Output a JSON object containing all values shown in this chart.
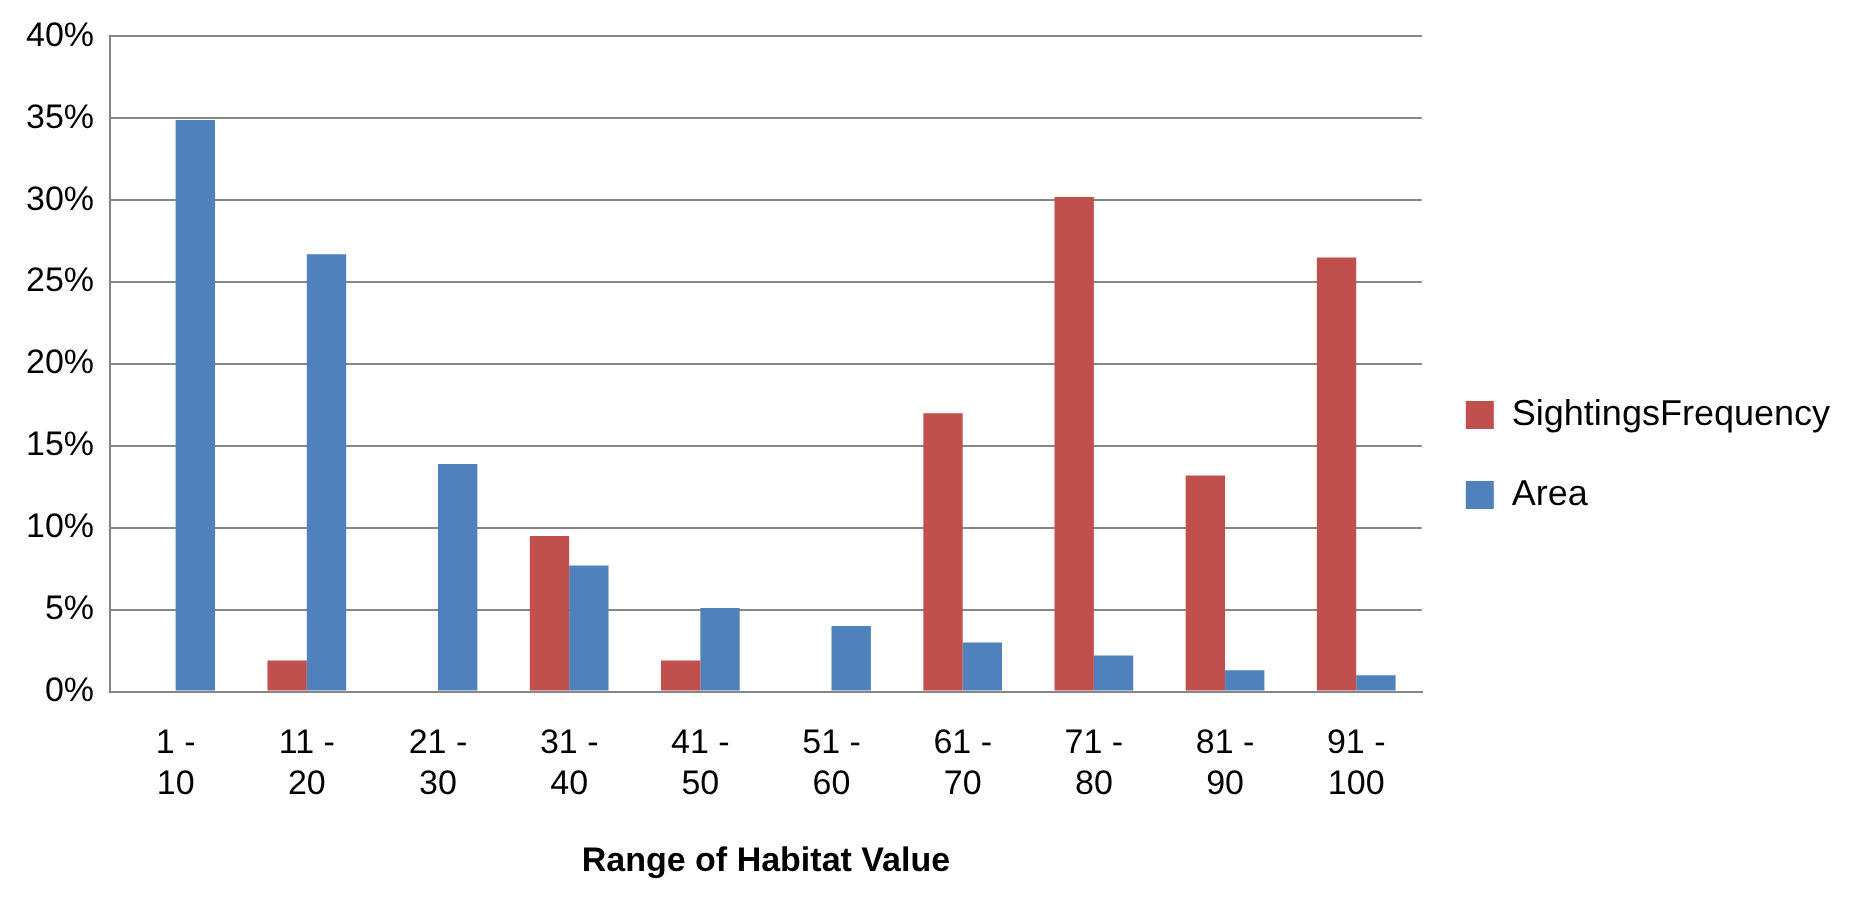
{
  "chart_data": {
    "type": "bar",
    "xlabel": "Range of Habitat Value",
    "categories": [
      "1 - 10",
      "11 - 20",
      "21 - 30",
      "31 - 40",
      "41 - 50",
      "51 - 60",
      "61 - 70",
      "71 - 80",
      "81 - 90",
      "91 - 100"
    ],
    "series": [
      {
        "name": "SightingsFrequency",
        "color": "#c0504d",
        "values": [
          0,
          1.9,
          0,
          9.5,
          1.9,
          0,
          17.0,
          30.2,
          13.2,
          26.5
        ]
      },
      {
        "name": "Area",
        "color": "#4f81bd",
        "values": [
          34.9,
          26.7,
          13.9,
          7.7,
          5.1,
          4.0,
          3.0,
          2.2,
          1.3,
          1.0
        ]
      }
    ],
    "ylim": [
      0,
      40
    ],
    "yticks": [
      {
        "value": 0,
        "label": "0%"
      },
      {
        "value": 5,
        "label": "5%"
      },
      {
        "value": 10,
        "label": "10%"
      },
      {
        "value": 15,
        "label": "15%"
      },
      {
        "value": 20,
        "label": "20%"
      },
      {
        "value": 25,
        "label": "25%"
      },
      {
        "value": 30,
        "label": "30%"
      },
      {
        "value": 35,
        "label": "35%"
      },
      {
        "value": 40,
        "label": "40%"
      }
    ],
    "grid": "y",
    "legend": "right"
  }
}
